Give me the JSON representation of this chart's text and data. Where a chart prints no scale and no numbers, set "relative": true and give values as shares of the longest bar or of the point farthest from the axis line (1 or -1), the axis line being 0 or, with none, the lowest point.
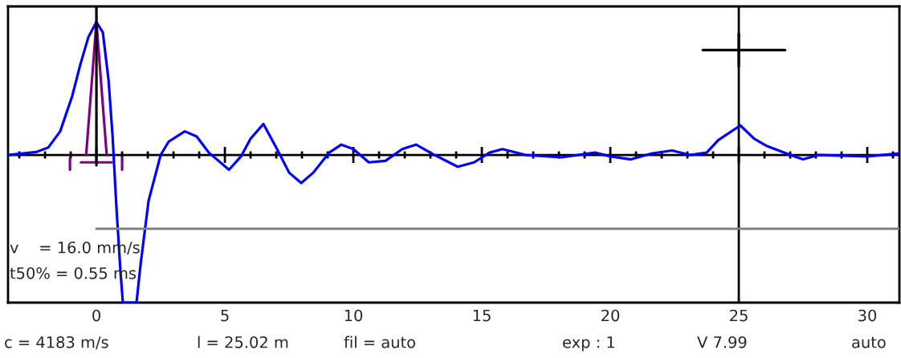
{
  "chart_data": {
    "type": "line",
    "relative": true,
    "xlim": [
      -3.44,
      31.25
    ],
    "xticks": [
      {
        "value": -3,
        "label": null
      },
      {
        "value": -2,
        "label": null
      },
      {
        "value": -1,
        "label": null
      },
      0,
      {
        "value": 1,
        "label": null
      },
      {
        "value": 2,
        "label": null
      },
      {
        "value": 3,
        "label": null
      },
      {
        "value": 4,
        "label": null
      },
      5,
      {
        "value": 6,
        "label": null
      },
      {
        "value": 7,
        "label": null
      },
      {
        "value": 8,
        "label": null
      },
      {
        "value": 9,
        "label": null
      },
      10,
      {
        "value": 11,
        "label": null
      },
      {
        "value": 12,
        "label": null
      },
      {
        "value": 13,
        "label": null
      },
      {
        "value": 14,
        "label": null
      },
      15,
      {
        "value": 16,
        "label": null
      },
      {
        "value": 17,
        "label": null
      },
      {
        "value": 18,
        "label": null
      },
      {
        "value": 19,
        "label": null
      },
      20,
      {
        "value": 21,
        "label": null
      },
      {
        "value": 22,
        "label": null
      },
      {
        "value": 23,
        "label": null
      },
      {
        "value": 24,
        "label": null
      },
      25,
      {
        "value": 26,
        "label": null
      },
      {
        "value": 27,
        "label": null
      },
      {
        "value": 28,
        "label": null
      },
      {
        "value": 29,
        "label": null
      },
      30,
      {
        "value": 31,
        "label": null
      }
    ],
    "grid": false,
    "legend": false,
    "line_style": "solid",
    "marker": "none",
    "ref_lines": [
      {
        "axis": "y",
        "value": 0,
        "color": "#000000"
      },
      {
        "axis": "x",
        "value": 25,
        "color": "#000000"
      }
    ],
    "series": [
      {
        "color": "#0000ff",
        "x": [
          -3.44,
          -2.34,
          -1.875,
          -1.41,
          -0.94,
          -0.63,
          -0.31,
          0,
          0.25,
          0.47,
          0.63,
          0.78,
          0.94,
          1.03,
          1.56,
          1.72,
          2.03,
          2.5,
          2.81,
          3.44,
          3.9,
          4.375,
          5.16,
          5.625,
          6.0,
          6.5,
          7.03,
          7.5,
          7.97,
          8.44,
          9.06,
          9.53,
          10.0,
          10.6,
          11.25,
          11.9,
          12.44,
          13.1,
          14.06,
          14.7,
          15.3,
          15.8,
          16.7,
          18.1,
          19.4,
          20.0,
          20.8,
          21.6,
          22.4,
          23.1,
          23.75,
          24.2,
          25.06,
          25.6,
          26.1,
          27.0,
          27.5,
          28.1,
          30.0,
          31.25
        ],
        "values": [
          0,
          0.02,
          0.05,
          0.16,
          0.4,
          0.61,
          0.8,
          0.9,
          0.83,
          0.51,
          0.125,
          -0.36,
          -0.8,
          -1.0,
          -1.0,
          -0.74,
          -0.31,
          0,
          0.09,
          0.16,
          0.125,
          0.016,
          -0.1,
          -0.01,
          0.11,
          0.21,
          0.04,
          -0.12,
          -0.19,
          -0.12,
          0.016,
          0.07,
          0.04,
          -0.05,
          -0.04,
          0.04,
          0.07,
          0.005,
          -0.08,
          -0.05,
          0.016,
          0.04,
          0,
          -0.016,
          0.016,
          -0.01,
          -0.03,
          0.01,
          0.03,
          0,
          0.016,
          0.1,
          0.2,
          0.11,
          0.06,
          0,
          -0.03,
          0,
          -0.01,
          0.01
        ]
      },
      {
        "color": "#800080",
        "x": [
          -0.4,
          0,
          0.4
        ],
        "values": [
          0,
          0.9,
          0
        ]
      },
      {
        "color": "#800080",
        "x": [
          -1.03,
          -1.03,
          -0.8,
          -0.6,
          0.6,
          0.8,
          1.0,
          1.0
        ],
        "values": [
          -0.02,
          -0.1,
          null,
          -0.05,
          -0.05,
          null,
          -0.02,
          -0.1
        ]
      },
      {
        "color": "#000000",
        "x": [
          0,
          0
        ],
        "values": [
          -0.07,
          1.0
        ]
      },
      {
        "color": "#808080",
        "x": [
          0,
          31.25
        ],
        "values": [
          -0.5,
          -0.5
        ]
      },
      {
        "color": "#000000",
        "x": [
          23.6,
          26.8
        ],
        "values": [
          0.71,
          0.71
        ]
      },
      {
        "color": "#000000",
        "x": [
          25,
          25
        ],
        "values": [
          0.6,
          0.82
        ]
      }
    ],
    "annotations": [
      "v    = 16.0 mm/s",
      "t50% = 0.55 ms",
      "c = 4183 m/s",
      "l = 25.02 m",
      "fil = auto",
      "exp : 1",
      "V 7.99",
      "auto"
    ]
  }
}
